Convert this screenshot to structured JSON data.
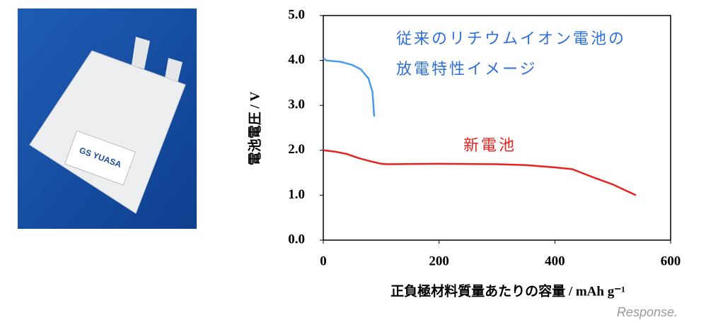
{
  "photo": {
    "label": "GS YUASA"
  },
  "chart_data": {
    "type": "line",
    "y_label": "電池電圧 / V",
    "x_label": "正負極材料質量あたりの容量 / mAh g⁻¹",
    "annotations": [
      {
        "text": "従来のリチウムイオン電池の",
        "color": "#2f6fd6"
      },
      {
        "text": "放電特性イメージ",
        "color": "#2f6fd6"
      },
      {
        "text": "新電池",
        "color": "#e8231f"
      }
    ],
    "xlim": [
      0,
      600
    ],
    "xticks": [
      0,
      200,
      400,
      600
    ],
    "ylim": [
      0,
      5
    ],
    "yticks": [
      {
        "value": 0,
        "label": "0.0"
      },
      {
        "value": 1,
        "label": "1.0"
      },
      {
        "value": 2,
        "label": "2.0"
      },
      {
        "value": 3,
        "label": "3.0"
      },
      {
        "value": 4,
        "label": "4.0"
      },
      {
        "value": 5,
        "label": "5.0"
      }
    ],
    "grid": false,
    "series": [
      {
        "color": "#4a9ae8",
        "x": [
          0,
          5,
          30,
          50,
          65,
          78,
          85,
          88
        ],
        "values": [
          4.05,
          4.0,
          3.97,
          3.9,
          3.8,
          3.6,
          3.3,
          2.75
        ]
      },
      {
        "color": "#e8231f",
        "x": [
          0,
          20,
          40,
          60,
          80,
          100,
          110,
          200,
          300,
          350,
          400,
          430,
          450,
          470,
          500,
          540
        ],
        "values": [
          2.0,
          1.97,
          1.92,
          1.83,
          1.76,
          1.7,
          1.69,
          1.7,
          1.69,
          1.67,
          1.62,
          1.58,
          1.48,
          1.38,
          1.24,
          1.0
        ]
      }
    ]
  },
  "watermark": "Response."
}
